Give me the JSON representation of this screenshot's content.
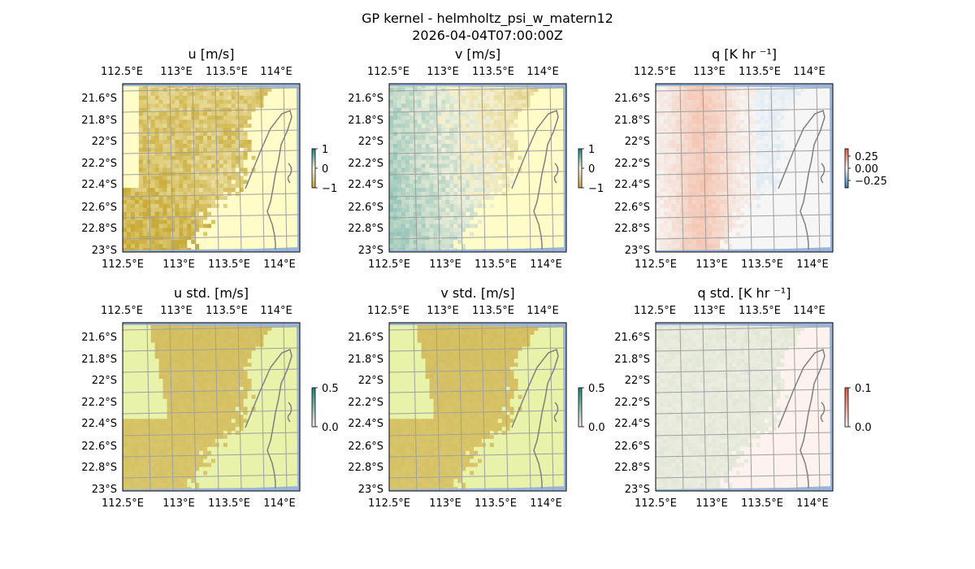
{
  "figure": {
    "title": "GP kernel - helmholtz_psi_w_matern12",
    "subtitle": "2026-04-04T07:00:00Z"
  },
  "colors": {
    "land": "#ffffff",
    "ocean_edge": "#9ab5dc",
    "grid": "#a0a0a0",
    "coast": "#808080",
    "brbg_low": "#1a8a82",
    "brbg_mid": "#f5f5e6",
    "brbg_high": "#c9a93a",
    "rdbu_low": "#3a78b8",
    "rdbu_mid": "#f7f7f7",
    "rdbu_high": "#e0593f"
  },
  "chart_data": [
    {
      "type": "heatmap",
      "id": "u",
      "title": "u [m/s]",
      "colormap": "BrBG",
      "clim": [
        -1,
        1
      ],
      "colorbar_ticks": [
        "1",
        "0",
        "−1"
      ],
      "x_ticks": [
        "112.5°E",
        "113°E",
        "113.5°E",
        "114°E"
      ],
      "y_ticks": [
        "21.6°S",
        "21.8°S",
        "22°S",
        "22.2°S",
        "22.4°S",
        "22.6°S",
        "22.8°S",
        "23°S"
      ],
      "xlim": [
        112.5,
        114.2
      ],
      "ylim": [
        -23.0,
        -21.5
      ],
      "grid": true
    },
    {
      "type": "heatmap",
      "id": "v",
      "title": "v [m/s]",
      "colormap": "BrBG",
      "clim": [
        -1,
        1
      ],
      "colorbar_ticks": [
        "1",
        "0",
        "−1"
      ],
      "x_ticks": [
        "112.5°E",
        "113°E",
        "113.5°E",
        "114°E"
      ],
      "y_ticks": [
        "21.6°S",
        "21.8°S",
        "22°S",
        "22.2°S",
        "22.4°S",
        "22.6°S",
        "22.8°S",
        "23°S"
      ],
      "xlim": [
        112.5,
        114.2
      ],
      "ylim": [
        -23.0,
        -21.5
      ],
      "grid": true
    },
    {
      "type": "heatmap",
      "id": "q",
      "title": "q [K hr ⁻¹]",
      "colormap": "RdBu_r",
      "clim": [
        -0.4,
        0.4
      ],
      "colorbar_ticks": [
        "0.25",
        "0.00",
        "−0.25"
      ],
      "x_ticks": [
        "112.5°E",
        "113°E",
        "113.5°E",
        "114°E"
      ],
      "y_ticks": [
        "21.6°S",
        "21.8°S",
        "22°S",
        "22.2°S",
        "22.4°S",
        "22.6°S",
        "22.8°S",
        "23°S"
      ],
      "xlim": [
        112.5,
        114.2
      ],
      "ylim": [
        -23.0,
        -21.5
      ],
      "grid": true
    },
    {
      "type": "heatmap",
      "id": "u_std",
      "title": "u std. [m/s]",
      "colormap": "BrBG",
      "clim": [
        0,
        0.5
      ],
      "colorbar_ticks": [
        "0.5",
        "0.0"
      ],
      "x_ticks": [
        "112.5°E",
        "113°E",
        "113.5°E",
        "114°E"
      ],
      "y_ticks": [
        "21.6°S",
        "21.8°S",
        "22°S",
        "22.2°S",
        "22.4°S",
        "22.6°S",
        "22.8°S",
        "23°S"
      ],
      "xlim": [
        112.5,
        114.2
      ],
      "ylim": [
        -23.0,
        -21.5
      ],
      "grid": true
    },
    {
      "type": "heatmap",
      "id": "v_std",
      "title": "v std. [m/s]",
      "colormap": "BrBG",
      "clim": [
        0,
        0.5
      ],
      "colorbar_ticks": [
        "0.5",
        "0.0"
      ],
      "x_ticks": [
        "112.5°E",
        "113°E",
        "113.5°E",
        "114°E"
      ],
      "y_ticks": [
        "21.6°S",
        "21.8°S",
        "22°S",
        "22.2°S",
        "22.4°S",
        "22.6°S",
        "22.8°S",
        "23°S"
      ],
      "xlim": [
        112.5,
        114.2
      ],
      "ylim": [
        -23.0,
        -21.5
      ],
      "grid": true
    },
    {
      "type": "heatmap",
      "id": "q_std",
      "title": "q std. [K hr ⁻¹]",
      "colormap": "RdBu_r",
      "clim": [
        0,
        0.1
      ],
      "colorbar_ticks": [
        "0.1",
        "0.0"
      ],
      "x_ticks": [
        "112.5°E",
        "113°E",
        "113.5°E",
        "114°E"
      ],
      "y_ticks": [
        "21.6°S",
        "21.8°S",
        "22°S",
        "22.2°S",
        "22.4°S",
        "22.6°S",
        "22.8°S",
        "23°S"
      ],
      "xlim": [
        112.5,
        114.2
      ],
      "ylim": [
        -23.0,
        -21.5
      ],
      "grid": true
    }
  ]
}
